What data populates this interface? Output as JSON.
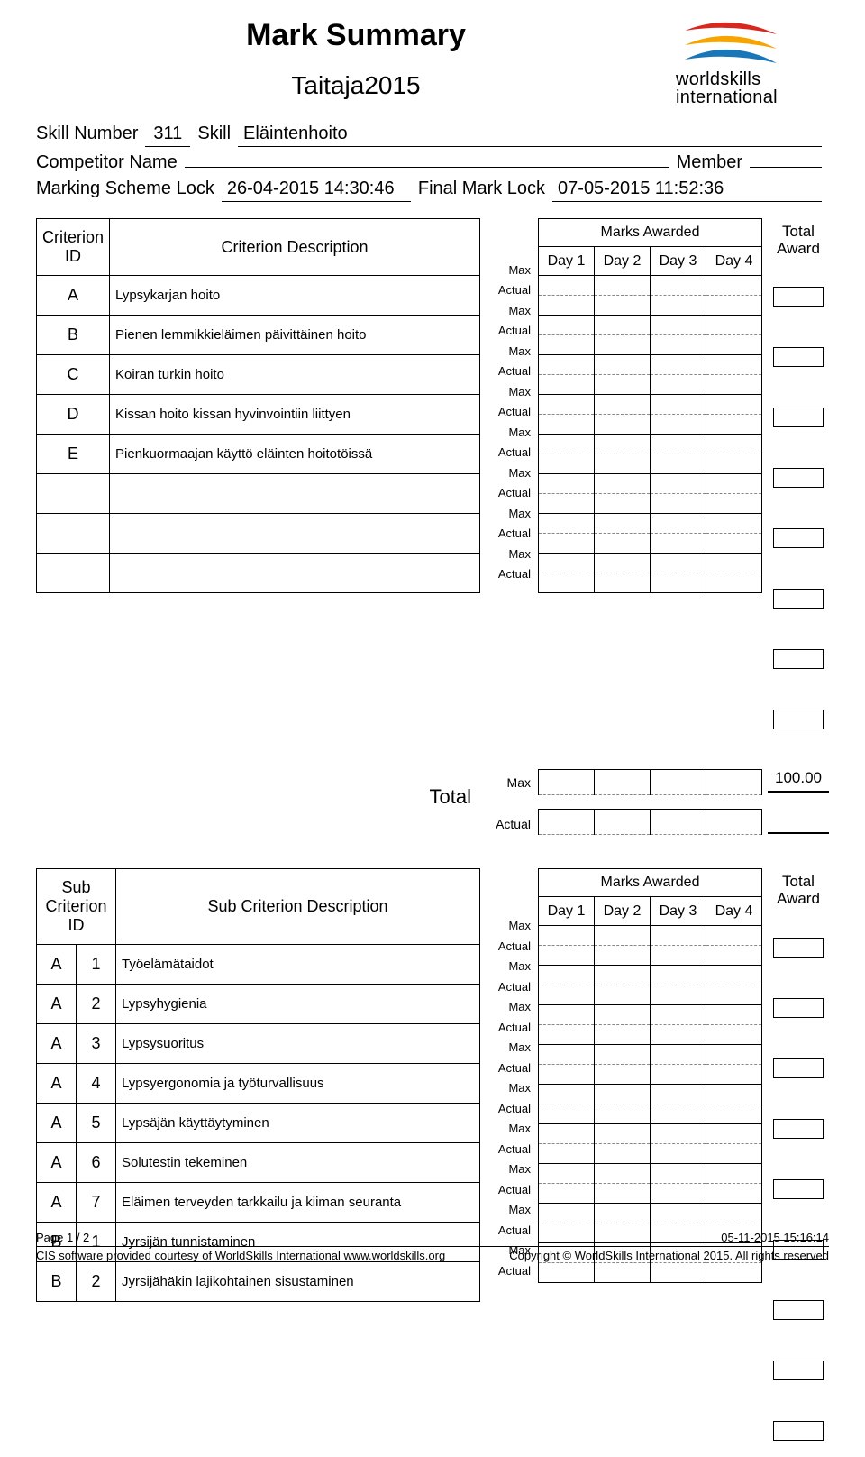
{
  "title": "Mark Summary",
  "event": "Taitaja2015",
  "labels": {
    "skill_number": "Skill Number",
    "skill": "Skill",
    "competitor_name": "Competitor Name",
    "member": "Member",
    "marking_scheme_lock": "Marking Scheme Lock",
    "final_mark_lock": "Final Mark Lock",
    "criterion_id": "Criterion ID",
    "criterion_description": "Criterion Description",
    "marks_awarded": "Marks Awarded",
    "total_award": "Total\nAward",
    "max": "Max",
    "actual": "Actual",
    "total": "Total",
    "sub_criterion_id": "Sub\nCriterion ID",
    "sub_criterion_description": "Sub Criterion Description"
  },
  "skill_number_value": "311",
  "skill_value": "Eläintenhoito",
  "marking_lock_value": "26-04-2015 14:30:46",
  "final_lock_value": "07-05-2015 11:52:36",
  "days": [
    "Day 1",
    "Day 2",
    "Day 3",
    "Day 4"
  ],
  "criteria": [
    {
      "id": "A",
      "desc": "Lypsykarjan hoito"
    },
    {
      "id": "B",
      "desc": "Pienen lemmikkieläimen päivittäinen hoito"
    },
    {
      "id": "C",
      "desc": "Koiran turkin hoito"
    },
    {
      "id": "D",
      "desc": "Kissan hoito kissan hyvinvointiin liittyen"
    },
    {
      "id": "E",
      "desc": "Pienkuormaajan käyttö eläinten hoitotöissä"
    },
    {
      "id": "",
      "desc": ""
    },
    {
      "id": "",
      "desc": ""
    },
    {
      "id": "",
      "desc": ""
    }
  ],
  "total_max_value": "100.00",
  "sub_criteria": [
    {
      "a": "A",
      "n": "1",
      "desc": "Työelämätaidot"
    },
    {
      "a": "A",
      "n": "2",
      "desc": "Lypsyhygienia"
    },
    {
      "a": "A",
      "n": "3",
      "desc": "Lypsysuoritus"
    },
    {
      "a": "A",
      "n": "4",
      "desc": "Lypsyergonomia ja työturvallisuus"
    },
    {
      "a": "A",
      "n": "5",
      "desc": "Lypsäjän käyttäytyminen"
    },
    {
      "a": "A",
      "n": "6",
      "desc": "Solutestin tekeminen"
    },
    {
      "a": "A",
      "n": "7",
      "desc": "Eläimen terveyden tarkkailu ja kiiman seuranta"
    },
    {
      "a": "B",
      "n": "1",
      "desc": "Jyrsijän tunnistaminen"
    },
    {
      "a": "B",
      "n": "2",
      "desc": "Jyrsijähäkin lajikohtainen sisustaminen"
    }
  ],
  "footer": {
    "page": "Page 1 / 2",
    "timestamp": "05-11-2015 15:16:14",
    "credit": "CIS software provided courtesy of WorldSkills International www.worldskills.org",
    "copyright": "Copyright © WorldSkills International 2015. All rights reserved"
  },
  "logo": {
    "line1": "worldskills",
    "line2": "international",
    "colors": {
      "top": "#d9261e",
      "mid": "#f6a400",
      "bot": "#1976b8"
    }
  },
  "style": {
    "font": "Arial",
    "page_bg": "#ffffff",
    "text_color": "#000000",
    "dashed_color": "#888888",
    "title_fontsize": 34,
    "subtitle_fontsize": 28
  }
}
